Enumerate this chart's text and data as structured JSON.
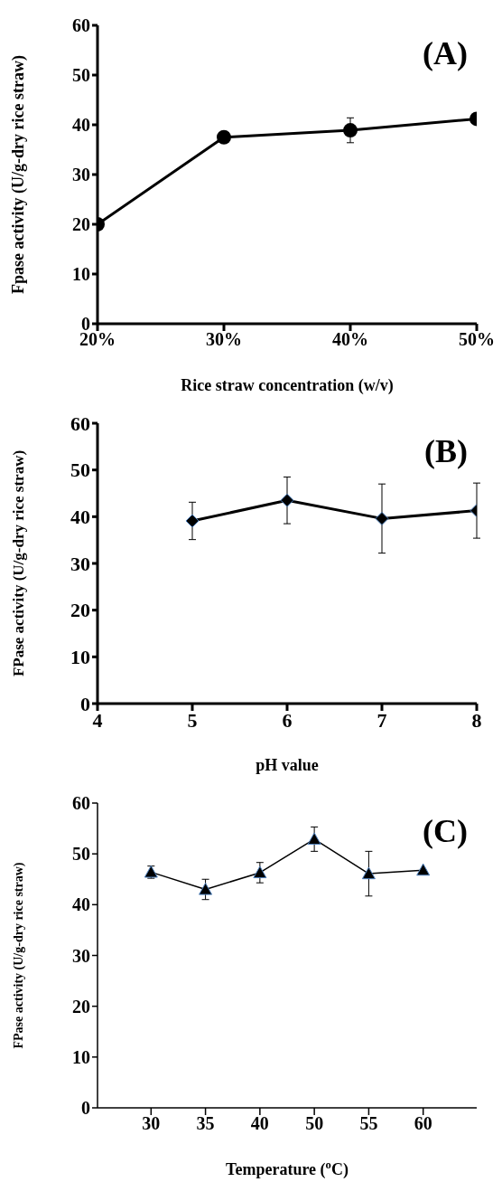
{
  "chart_data": [
    {
      "type": "line",
      "categories": [
        "20%",
        "30%",
        "40%",
        "50%"
      ],
      "xlabel": "Rice straw concentration (w/v)",
      "ylabel": "Fpase activity (U/g-dry rice straw)",
      "annotations": [
        "(A)"
      ],
      "series": [
        {
          "color": "#000000",
          "values": [
            20.0,
            37.5,
            38.9,
            41.2
          ],
          "errors": [
            null,
            null,
            2.5,
            null
          ]
        }
      ],
      "ylim": [
        0,
        60
      ],
      "yticks": [
        0,
        10,
        20,
        30,
        40,
        50,
        60
      ],
      "marker": "circle",
      "grid": false,
      "legend": false
    },
    {
      "type": "line",
      "x": [
        5,
        6,
        7,
        8
      ],
      "xlabel": "pH value",
      "ylabel": "FPase activity (U/g-dry rice straw)",
      "annotations": [
        "(B)"
      ],
      "series": [
        {
          "color": "#000000",
          "values": [
            39.1,
            43.5,
            39.6,
            41.3
          ],
          "errors": [
            4.0,
            5.0,
            7.4,
            5.9
          ]
        }
      ],
      "xlim": [
        4,
        8
      ],
      "xticks": [
        4,
        5,
        6,
        7,
        8
      ],
      "ylim": [
        0,
        60
      ],
      "yticks": [
        0,
        10,
        20,
        30,
        40,
        50,
        60
      ],
      "marker": "diamond",
      "grid": false,
      "legend": false
    },
    {
      "type": "line",
      "categories": [
        "30",
        "35",
        "40",
        "50",
        "55",
        "60"
      ],
      "xlabel": "Temperature ($^{o}$C)",
      "ylabel": "FPase activity (U/g-dry rice straw)",
      "annotations": [
        "(C)"
      ],
      "series": [
        {
          "color": "#000000",
          "values": [
            46.4,
            43.0,
            46.3,
            52.9,
            46.1,
            46.8
          ],
          "errors": [
            1.2,
            2.0,
            2.0,
            2.4,
            4.4,
            null
          ]
        }
      ],
      "ylim": [
        0,
        60
      ],
      "yticks": [
        0,
        10,
        20,
        30,
        40,
        50,
        60
      ],
      "marker": "triangle",
      "grid": false,
      "legend": false
    }
  ]
}
